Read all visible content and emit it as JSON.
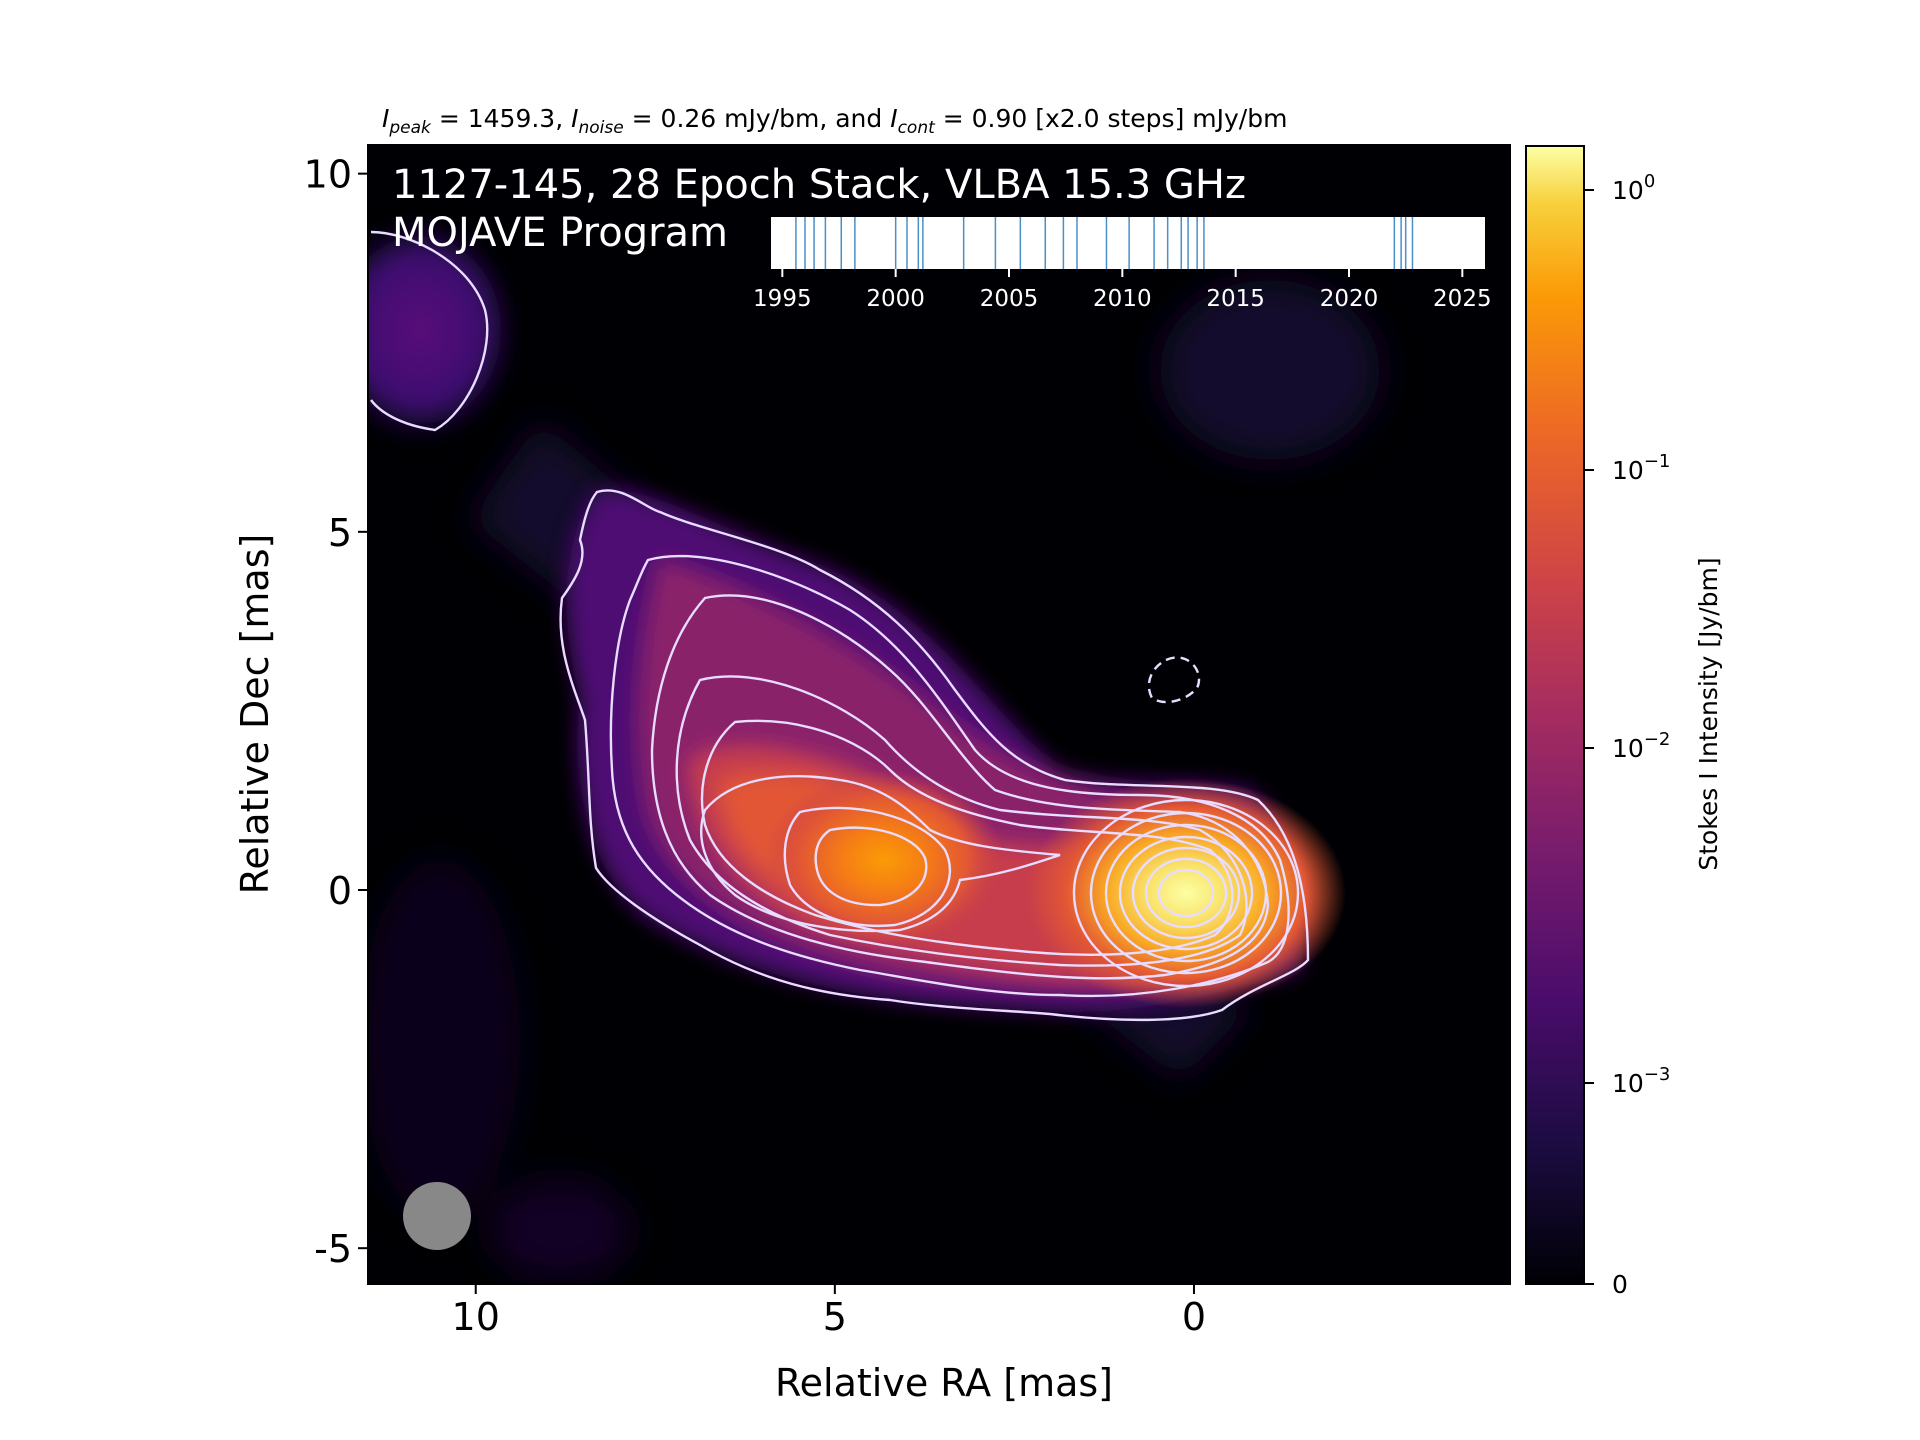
{
  "header": {
    "caption_prefix_peak_sym": "I",
    "caption_peak_sub": "peak",
    "caption_peak_text": " = 1459.3, ",
    "caption_noise_sym": "I",
    "caption_noise_sub": "noise",
    "caption_noise_text": " = 0.26 mJy/bm, and ",
    "caption_cont_sym": "I",
    "caption_cont_sub": "cont",
    "caption_cont_text": " = 0.90 [x2.0 steps] mJy/bm"
  },
  "overlay": {
    "title_line1": "1127-145, 28 Epoch Stack, VLBA 15.3 GHz",
    "title_line2": "MOJAVE Program"
  },
  "chart_data": {
    "type": "heatmap",
    "xlabel": "Relative RA [mas]",
    "ylabel": "Relative Dec [mas]",
    "xlim": [
      11.5,
      -4.4
    ],
    "ylim": [
      -5.5,
      10.4
    ],
    "x_ticks": [
      10,
      5,
      0
    ],
    "x_tick_labels": [
      "10",
      "5",
      "0"
    ],
    "y_ticks": [
      -5,
      0,
      5,
      10
    ],
    "y_tick_labels": [
      "-5",
      "0",
      "5",
      "10"
    ],
    "components": [
      {
        "name": "core",
        "ra": 0.05,
        "dec": 0.0
      },
      {
        "name": "jet knot",
        "ra": 4.3,
        "dec": 0.5
      },
      {
        "name": "extended jet",
        "ra": 7.6,
        "dec": 3.5
      },
      {
        "name": "north-east blob",
        "ra": 10.7,
        "dec": 8.0
      }
    ],
    "colorbar": {
      "label": "Stokes I Intensity [Jy/bm]",
      "scale": "log",
      "colormap": "inferno",
      "ticks": [
        {
          "base": "10",
          "exp": "0"
        },
        {
          "base": "10",
          "exp": "−1"
        },
        {
          "base": "10",
          "exp": "−2"
        },
        {
          "base": "10",
          "exp": "−3"
        },
        {
          "base": "0",
          "exp": ""
        }
      ]
    },
    "epoch_timeline": {
      "xlim": [
        1994.5,
        2026.0
      ],
      "ticks": [
        1995,
        2000,
        2005,
        2010,
        2015,
        2020,
        2025
      ],
      "tick_labels": [
        "1995",
        "2000",
        "2005",
        "2010",
        "2015",
        "2020",
        "2025"
      ],
      "epochs": [
        1995.6,
        1996.0,
        1996.4,
        1996.9,
        1997.6,
        1998.2,
        2000.0,
        2000.5,
        2001.0,
        2001.2,
        2003.0,
        2004.4,
        2005.5,
        2006.6,
        2007.4,
        2008.0,
        2009.3,
        2010.3,
        2011.4,
        2012.0,
        2012.6,
        2012.9,
        2013.3,
        2013.6,
        2022.0,
        2022.3,
        2022.5,
        2022.8
      ],
      "line_color": "#4a90c8"
    },
    "beam_color": "#888888",
    "contour_color": "#e8dcff"
  }
}
